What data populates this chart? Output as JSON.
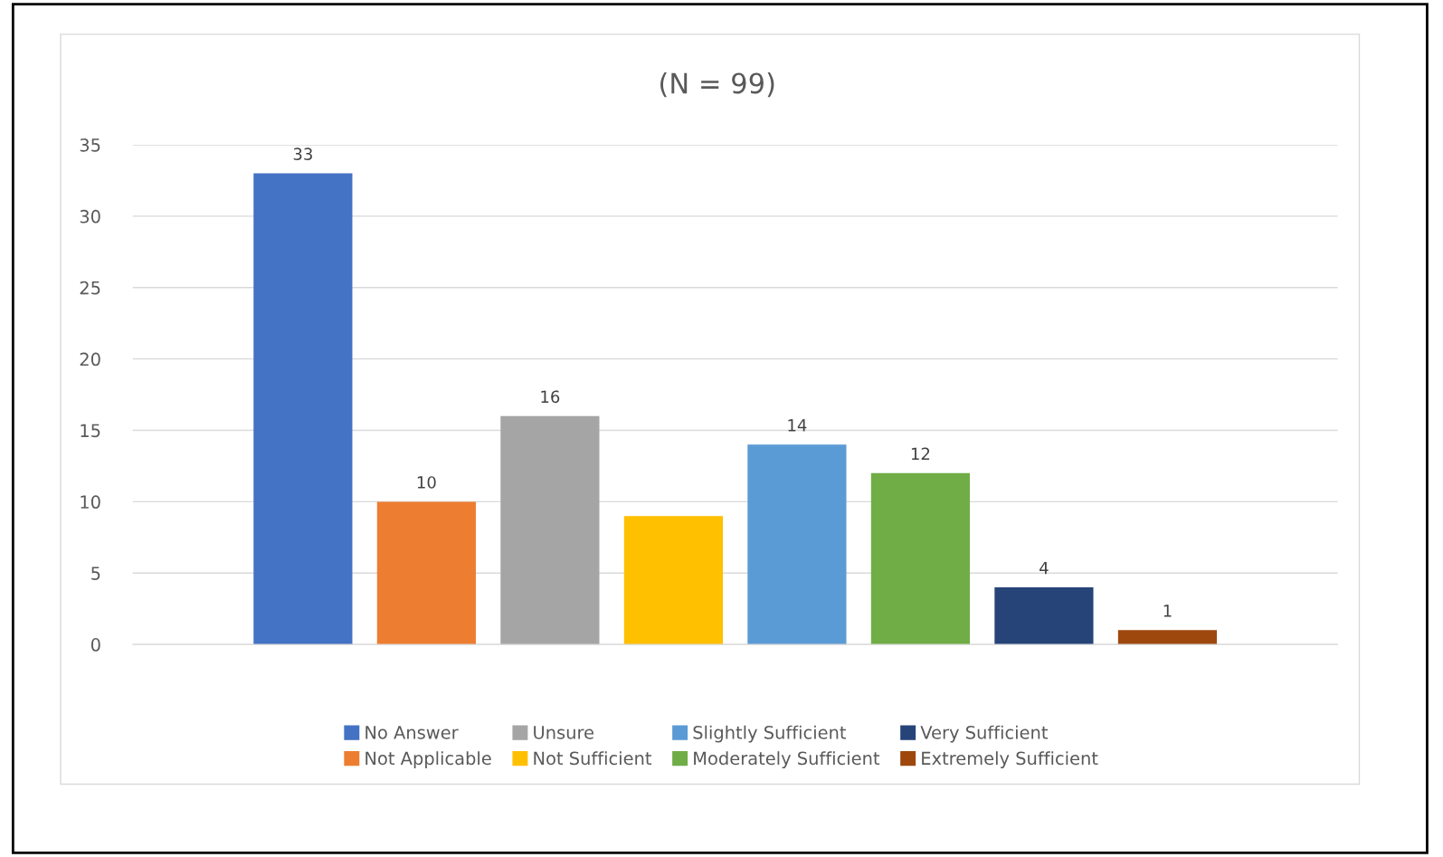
{
  "chart_data": {
    "type": "bar",
    "title": "(N = 99)",
    "categories": [
      null
    ],
    "series": [
      {
        "name": "No Answer",
        "color": "#4472c4",
        "values": [
          33
        ],
        "value_labels": [
          "33"
        ]
      },
      {
        "name": "Not Applicable",
        "color": "#ed7d31",
        "values": [
          10
        ],
        "value_labels": [
          "10"
        ]
      },
      {
        "name": "Unsure",
        "color": "#a5a5a5",
        "values": [
          16
        ],
        "value_labels": [
          "16"
        ]
      },
      {
        "name": "Not Sufficient",
        "color": "#ffc000",
        "values": [
          9
        ],
        "value_labels": [
          null
        ]
      },
      {
        "name": "Slightly Sufficient",
        "color": "#5b9bd5",
        "values": [
          14
        ],
        "value_labels": [
          "14"
        ]
      },
      {
        "name": "Moderately Sufficient",
        "color": "#70ad47",
        "values": [
          12
        ],
        "value_labels": [
          "12"
        ]
      },
      {
        "name": "Very Sufficient",
        "color": "#264478",
        "values": [
          4
        ],
        "value_labels": [
          "4"
        ]
      },
      {
        "name": "Extremely Sufficient",
        "color": "#9e480e",
        "values": [
          1
        ],
        "value_labels": [
          "1"
        ]
      }
    ],
    "ylim": [
      0,
      35
    ],
    "yticks": [
      0,
      5,
      10,
      15,
      20,
      25,
      30,
      35
    ],
    "grid": "y",
    "legend": "bottom"
  }
}
